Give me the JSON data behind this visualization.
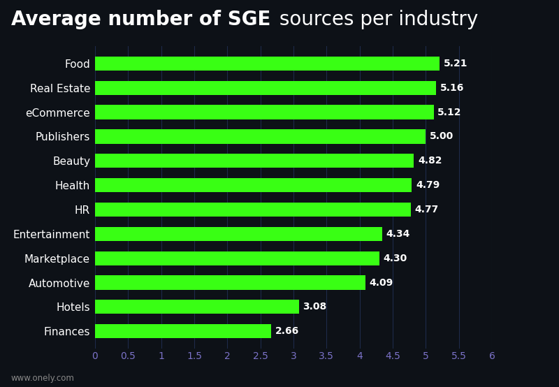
{
  "title_bold": "Average number of SGE",
  "title_regular": " sources per industry",
  "categories": [
    "Food",
    "Real Estate",
    "eCommerce",
    "Publishers",
    "Beauty",
    "Health",
    "HR",
    "Entertainment",
    "Marketplace",
    "Automotive",
    "Hotels",
    "Finances"
  ],
  "values": [
    5.21,
    5.16,
    5.12,
    5.0,
    4.82,
    4.79,
    4.77,
    4.34,
    4.3,
    4.09,
    3.08,
    2.66
  ],
  "bar_color": "#39ff14",
  "background_color": "#0d1117",
  "text_color": "#ffffff",
  "label_color": "#ffffff",
  "tick_color": "#7b72c8",
  "value_label_color": "#ffffff",
  "grid_color": "#1e2a4a",
  "xlim": [
    0,
    6.0
  ],
  "xticks": [
    0,
    0.5,
    1.0,
    1.5,
    2.0,
    2.5,
    3.0,
    3.5,
    4.0,
    4.5,
    5.0,
    5.5,
    6.0
  ],
  "footer_left": "www.onely.com",
  "bar_height": 0.58,
  "title_fontsize": 20,
  "label_fontsize": 11,
  "value_fontsize": 10,
  "tick_fontsize": 10
}
